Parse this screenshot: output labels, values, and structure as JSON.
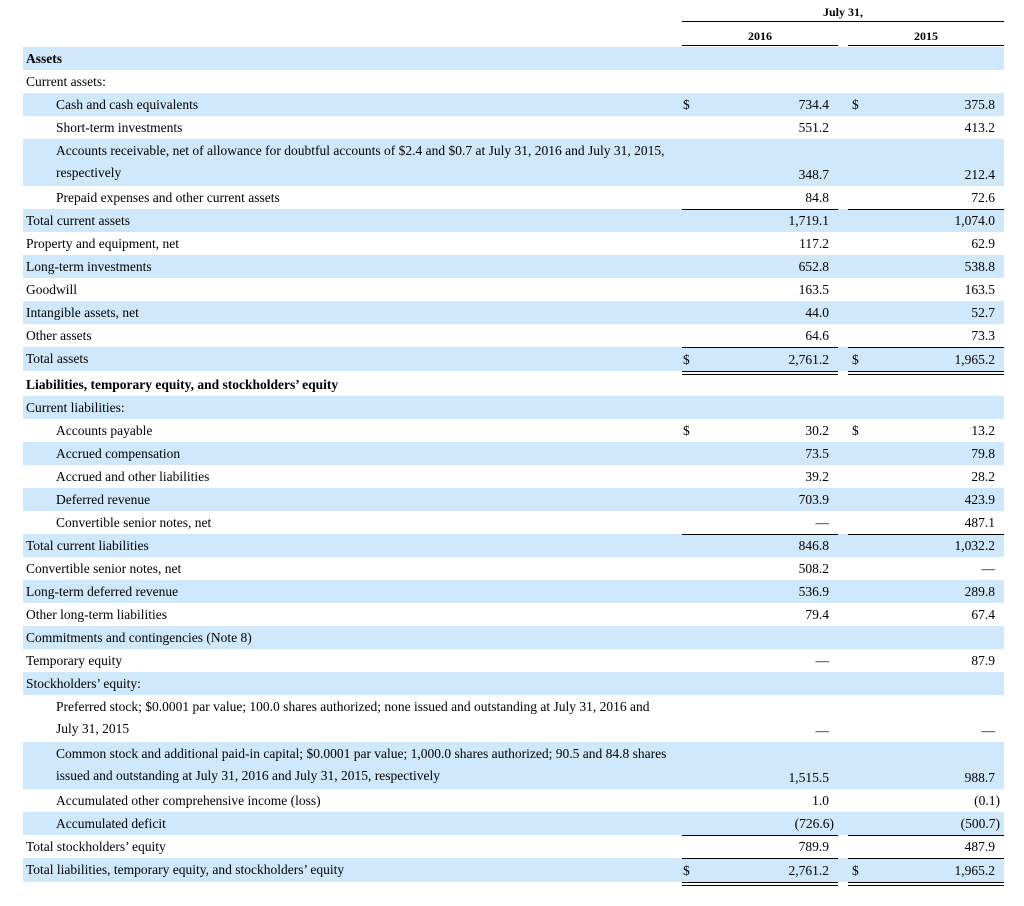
{
  "header": {
    "period": "July 31,",
    "years": [
      "2016",
      "2015"
    ]
  },
  "currency_symbol": "$",
  "colors": {
    "row_shade": "#cfe8fb",
    "text": "#000000"
  },
  "rows": [
    {
      "label": "Assets",
      "style": "bold",
      "shade": true,
      "v2016": "",
      "v2015": ""
    },
    {
      "label": "Current assets:",
      "shade": false,
      "v2016": "",
      "v2015": ""
    },
    {
      "label": "Cash and cash equivalents",
      "indent": true,
      "shade": true,
      "cur": true,
      "v2016": "734.4",
      "v2015": "375.8"
    },
    {
      "label": "Short-term investments",
      "indent": true,
      "shade": false,
      "v2016": "551.2",
      "v2015": "413.2"
    },
    {
      "label": "Accounts receivable, net of allowance for doubtful accounts of $2.4 and $0.7 at July 31, 2016 and July 31, 2015, respectively",
      "indent": true,
      "shade": true,
      "tall": true,
      "v2016": "348.7",
      "v2015": "212.4"
    },
    {
      "label": "Prepaid expenses and other current assets",
      "indent": true,
      "shade": false,
      "v2016": "84.8",
      "v2015": "72.6"
    },
    {
      "label": "Total current assets",
      "shade": true,
      "rule_top": true,
      "v2016": "1,719.1",
      "v2015": "1,074.0"
    },
    {
      "label": "Property and equipment, net",
      "shade": false,
      "v2016": "117.2",
      "v2015": "62.9"
    },
    {
      "label": "Long-term investments",
      "shade": true,
      "v2016": "652.8",
      "v2015": "538.8"
    },
    {
      "label": "Goodwill",
      "shade": false,
      "v2016": "163.5",
      "v2015": "163.5"
    },
    {
      "label": "Intangible assets, net",
      "shade": true,
      "v2016": "44.0",
      "v2015": "52.7"
    },
    {
      "label": "Other assets",
      "shade": false,
      "v2016": "64.6",
      "v2015": "73.3"
    },
    {
      "label": "Total assets",
      "shade": true,
      "rule_top": true,
      "double_bottom": true,
      "cur": true,
      "v2016": "2,761.2",
      "v2015": "1,965.2"
    },
    {
      "label": "Liabilities, temporary equity, and stockholders’ equity",
      "style": "bold",
      "shade": false,
      "v2016": "",
      "v2015": ""
    },
    {
      "label": "Current liabilities:",
      "shade": true,
      "v2016": "",
      "v2015": ""
    },
    {
      "label": "Accounts payable",
      "indent": true,
      "shade": false,
      "cur": true,
      "v2016": "30.2",
      "v2015": "13.2"
    },
    {
      "label": "Accrued compensation",
      "indent": true,
      "shade": true,
      "v2016": "73.5",
      "v2015": "79.8"
    },
    {
      "label": "Accrued and other liabilities",
      "indent": true,
      "shade": false,
      "v2016": "39.2",
      "v2015": "28.2"
    },
    {
      "label": "Deferred revenue",
      "indent": true,
      "shade": true,
      "v2016": "703.9",
      "v2015": "423.9"
    },
    {
      "label": "Convertible senior notes, net",
      "indent": true,
      "shade": false,
      "v2016": "—",
      "v2015": "487.1"
    },
    {
      "label": "Total current liabilities",
      "shade": true,
      "rule_top": true,
      "v2016": "846.8",
      "v2015": "1,032.2"
    },
    {
      "label": "Convertible senior notes, net",
      "shade": false,
      "v2016": "508.2",
      "v2015": "—"
    },
    {
      "label": "Long-term deferred revenue",
      "shade": true,
      "v2016": "536.9",
      "v2015": "289.8"
    },
    {
      "label": "Other long-term liabilities",
      "shade": false,
      "v2016": "79.4",
      "v2015": "67.4"
    },
    {
      "label": "Commitments and contingencies (Note 8)",
      "shade": true,
      "v2016": "",
      "v2015": ""
    },
    {
      "label": "Temporary equity",
      "shade": false,
      "v2016": "—",
      "v2015": "87.9"
    },
    {
      "label": "Stockholders’ equity:",
      "shade": true,
      "v2016": "",
      "v2015": ""
    },
    {
      "label": "Preferred stock; $0.0001 par value; 100.0 shares authorized; none issued and outstanding at July 31, 2016 and July 31, 2015",
      "indent": true,
      "shade": false,
      "tall": true,
      "v2016": "—",
      "v2015": "—"
    },
    {
      "label": "Common stock and additional paid-in capital; $0.0001 par value; 1,000.0 shares authorized; 90.5 and 84.8 shares issued and outstanding at July 31, 2016 and July 31, 2015, respectively",
      "indent": true,
      "shade": true,
      "tall": true,
      "v2016": "1,515.5",
      "v2015": "988.7"
    },
    {
      "label": "Accumulated other comprehensive income (loss)",
      "indent": true,
      "shade": false,
      "v2016": "1.0",
      "v2015": "(0.1)"
    },
    {
      "label": "Accumulated deficit",
      "indent": true,
      "shade": true,
      "v2016": "(726.6)",
      "v2015": "(500.7)"
    },
    {
      "label": "Total stockholders’ equity",
      "shade": false,
      "rule_top": true,
      "v2016": "789.9",
      "v2015": "487.9"
    },
    {
      "label": "Total liabilities, temporary equity, and stockholders’ equity",
      "shade": true,
      "rule_top": true,
      "double_bottom": true,
      "cur": true,
      "v2016": "2,761.2",
      "v2015": "1,965.2"
    }
  ]
}
